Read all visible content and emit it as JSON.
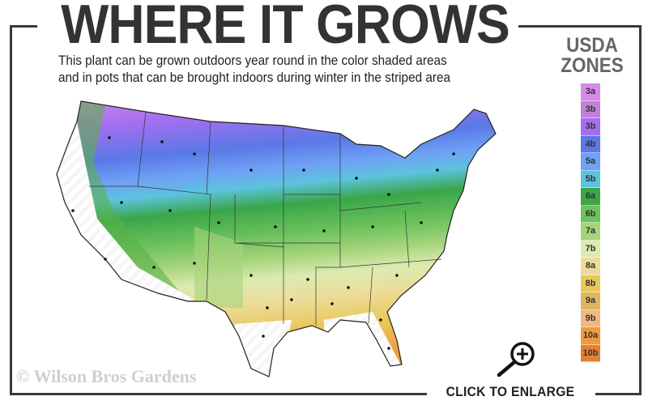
{
  "header": {
    "title": "WHERE IT GROWS",
    "subtitle_line1": "This plant can be grown outdoors year round in the color shaded areas",
    "subtitle_line2": "and in pots that can be brought indoors during winter in the striped area"
  },
  "legend": {
    "title_line1": "USDA",
    "title_line2": "ZONES",
    "zones": [
      {
        "label": "3a",
        "color": "#d78ae6"
      },
      {
        "label": "3b",
        "color": "#c47fd8"
      },
      {
        "label": "3b",
        "color": "#a46ef0"
      },
      {
        "label": "4b",
        "color": "#5a79e6"
      },
      {
        "label": "5a",
        "color": "#6fa1f5"
      },
      {
        "label": "5b",
        "color": "#5cc3dd"
      },
      {
        "label": "6a",
        "color": "#3aa649"
      },
      {
        "label": "6b",
        "color": "#6cc25c"
      },
      {
        "label": "7a",
        "color": "#a6d47c"
      },
      {
        "label": "7b",
        "color": "#dcebb0"
      },
      {
        "label": "8a",
        "color": "#ecdc9a"
      },
      {
        "label": "8b",
        "color": "#e9c85a"
      },
      {
        "label": "9a",
        "color": "#ddb65f"
      },
      {
        "label": "9b",
        "color": "#f1b77f"
      },
      {
        "label": "10a",
        "color": "#ee9a3e"
      },
      {
        "label": "10b",
        "color": "#e5802f"
      }
    ]
  },
  "footer": {
    "watermark": "© Wilson Bros Gardens",
    "enlarge_label": "CLICK TO ENLARGE",
    "enlarge_icon": "zoom-in-icon"
  }
}
